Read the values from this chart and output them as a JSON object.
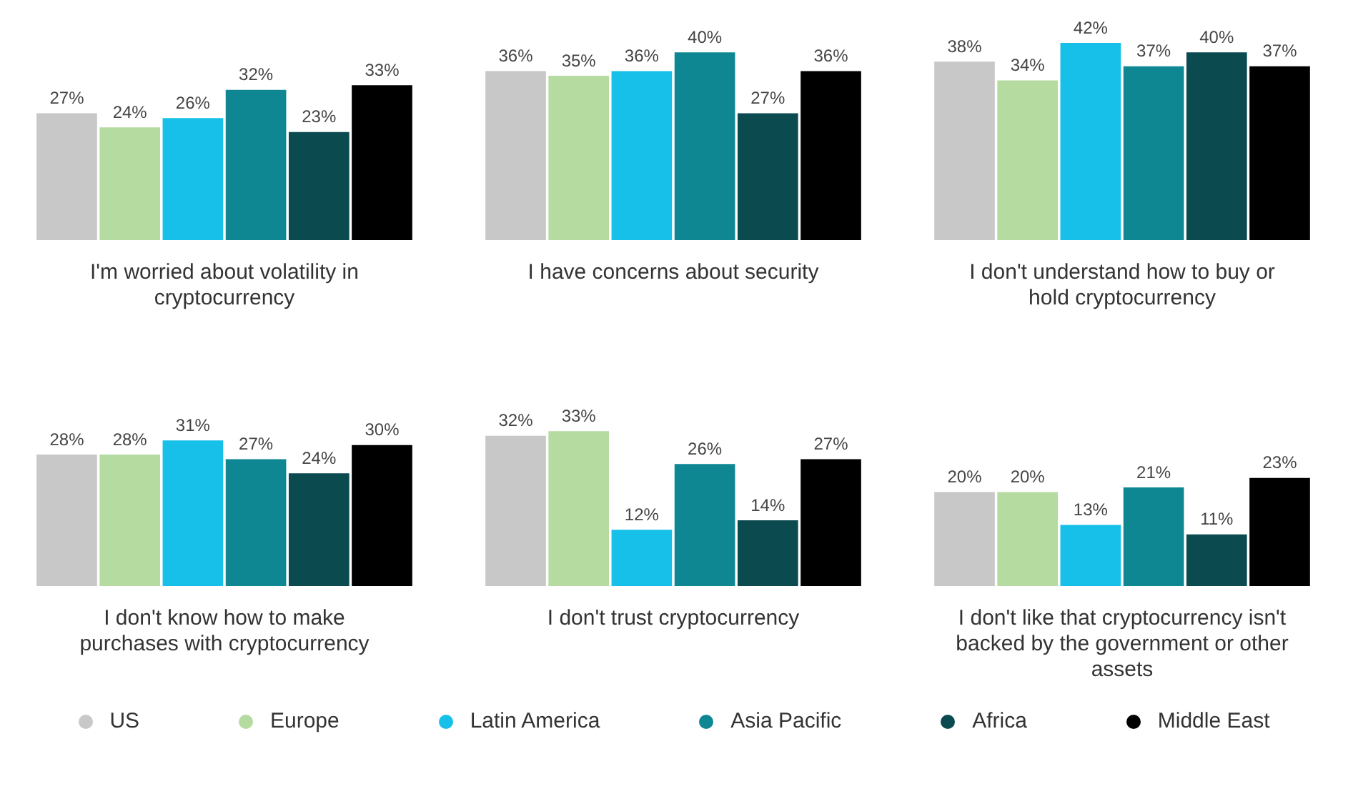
{
  "chart_data": [
    {
      "type": "bar",
      "xlabel": "I'm worried about volatility in cryptocurrency",
      "categories": [
        null
      ],
      "tick_labels": false,
      "legend": "bottom",
      "series": [
        {
          "name": "US",
          "color": "#c8c8c8",
          "values": [
            27
          ],
          "value_labels": [
            "27%"
          ]
        },
        {
          "name": "Europe",
          "color": "#b5dba0",
          "values": [
            24
          ],
          "value_labels": [
            "24%"
          ]
        },
        {
          "name": "Latin America",
          "color": "#16c0e8",
          "values": [
            26
          ],
          "value_labels": [
            "26%"
          ]
        },
        {
          "name": "Asia Pacific",
          "color": "#0e8793",
          "values": [
            32
          ],
          "value_labels": [
            "32%"
          ]
        },
        {
          "name": "Africa",
          "color": "#0b4a4f",
          "values": [
            23
          ],
          "value_labels": [
            "23%"
          ]
        },
        {
          "name": "Middle East",
          "color": "#000000",
          "values": [
            33
          ],
          "value_labels": [
            "33%"
          ]
        }
      ]
    },
    {
      "type": "bar",
      "xlabel": "I have concerns about security",
      "categories": [
        null
      ],
      "tick_labels": false,
      "series": [
        {
          "color": "#c8c8c8",
          "values": [
            36
          ],
          "value_labels": [
            "36%"
          ]
        },
        {
          "color": "#b5dba0",
          "values": [
            35
          ],
          "value_labels": [
            "35%"
          ]
        },
        {
          "color": "#16c0e8",
          "values": [
            36
          ],
          "value_labels": [
            "36%"
          ]
        },
        {
          "color": "#0e8793",
          "values": [
            40
          ],
          "value_labels": [
            "40%"
          ]
        },
        {
          "color": "#0b4a4f",
          "values": [
            27
          ],
          "value_labels": [
            "27%"
          ]
        },
        {
          "color": "#000000",
          "values": [
            36
          ],
          "value_labels": [
            "36%"
          ]
        }
      ]
    },
    {
      "type": "bar",
      "xlabel": "I don't understand how to buy or hold cryptocurrency",
      "categories": [
        null
      ],
      "tick_labels": false,
      "series": [
        {
          "color": "#c8c8c8",
          "values": [
            38
          ],
          "value_labels": [
            "38%"
          ]
        },
        {
          "color": "#b5dba0",
          "values": [
            34
          ],
          "value_labels": [
            "34%"
          ]
        },
        {
          "color": "#16c0e8",
          "values": [
            42
          ],
          "value_labels": [
            "42%"
          ]
        },
        {
          "color": "#0e8793",
          "values": [
            37
          ],
          "value_labels": [
            "37%"
          ]
        },
        {
          "color": "#0b4a4f",
          "values": [
            40
          ],
          "value_labels": [
            "40%"
          ]
        },
        {
          "color": "#000000",
          "values": [
            37
          ],
          "value_labels": [
            "37%"
          ]
        }
      ]
    },
    {
      "type": "bar",
      "xlabel": "I don't know how to make purchases with cryptocurrency",
      "categories": [
        null
      ],
      "tick_labels": false,
      "series": [
        {
          "color": "#c8c8c8",
          "values": [
            28
          ],
          "value_labels": [
            "28%"
          ]
        },
        {
          "color": "#b5dba0",
          "values": [
            28
          ],
          "value_labels": [
            "28%"
          ]
        },
        {
          "color": "#16c0e8",
          "values": [
            31
          ],
          "value_labels": [
            "31%"
          ]
        },
        {
          "color": "#0e8793",
          "values": [
            27
          ],
          "value_labels": [
            "27%"
          ]
        },
        {
          "color": "#0b4a4f",
          "values": [
            24
          ],
          "value_labels": [
            "24%"
          ]
        },
        {
          "color": "#000000",
          "values": [
            30
          ],
          "value_labels": [
            "30%"
          ]
        }
      ]
    },
    {
      "type": "bar",
      "xlabel": "I don't trust cryptocurrency",
      "categories": [
        null
      ],
      "tick_labels": false,
      "series": [
        {
          "color": "#c8c8c8",
          "values": [
            32
          ],
          "value_labels": [
            "32%"
          ]
        },
        {
          "color": "#b5dba0",
          "values": [
            33
          ],
          "value_labels": [
            "33%"
          ]
        },
        {
          "color": "#16c0e8",
          "values": [
            12
          ],
          "value_labels": [
            "12%"
          ]
        },
        {
          "color": "#0e8793",
          "values": [
            26
          ],
          "value_labels": [
            "26%"
          ]
        },
        {
          "color": "#0b4a4f",
          "values": [
            14
          ],
          "value_labels": [
            "14%"
          ]
        },
        {
          "color": "#000000",
          "values": [
            27
          ],
          "value_labels": [
            "27%"
          ]
        }
      ]
    },
    {
      "type": "bar",
      "xlabel": "I don't like that cryptocurrency isn't backed by the government or other assets",
      "categories": [
        null
      ],
      "tick_labels": false,
      "series": [
        {
          "color": "#c8c8c8",
          "values": [
            20
          ],
          "value_labels": [
            "20%"
          ]
        },
        {
          "color": "#b5dba0",
          "values": [
            20
          ],
          "value_labels": [
            "20%"
          ]
        },
        {
          "color": "#16c0e8",
          "values": [
            13
          ],
          "value_labels": [
            "13%"
          ]
        },
        {
          "color": "#0e8793",
          "values": [
            21
          ],
          "value_labels": [
            "21%"
          ]
        },
        {
          "color": "#0b4a4f",
          "values": [
            11
          ],
          "value_labels": [
            "11%"
          ]
        },
        {
          "color": "#000000",
          "values": [
            23
          ],
          "value_labels": [
            "23%"
          ]
        }
      ]
    }
  ]
}
